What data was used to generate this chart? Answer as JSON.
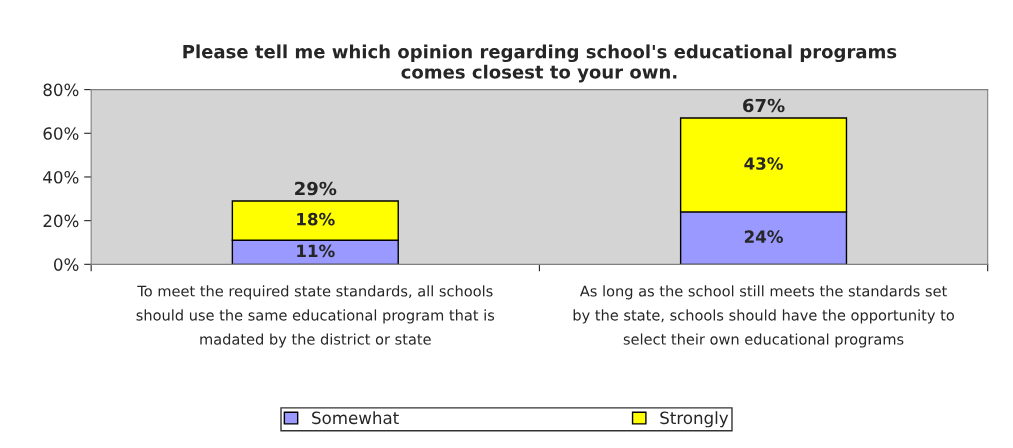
{
  "chart_data": {
    "type": "bar",
    "title": "Please tell me which opinion regarding school's educational programs\ncomes closest to your own.",
    "categories": [
      "To meet the required state standards, all schools\nshould use the same educational program that is\nmadated by the district or state",
      "As long as the school still meets the standards set\nby the state, schools should have the opportunity to\nselect their own educational programs"
    ],
    "stacked": true,
    "series": [
      {
        "name": "Somewhat",
        "color": "#9999ff",
        "values": [
          11,
          24
        ],
        "value_labels": [
          "11%",
          "24%"
        ]
      },
      {
        "name": "Strongly",
        "color": "#ffff00",
        "values": [
          18,
          43
        ],
        "value_labels": [
          "18%",
          "43%"
        ]
      }
    ],
    "totals": [
      "29%",
      "67%"
    ],
    "ylim": [
      0,
      80
    ],
    "yticks": [
      {
        "value": 0,
        "label": "0%"
      },
      {
        "value": 20,
        "label": "20%"
      },
      {
        "value": 40,
        "label": "40%"
      },
      {
        "value": 60,
        "label": "60%"
      },
      {
        "value": 80,
        "label": "80%"
      }
    ],
    "grid": false,
    "legend": "bottom"
  }
}
